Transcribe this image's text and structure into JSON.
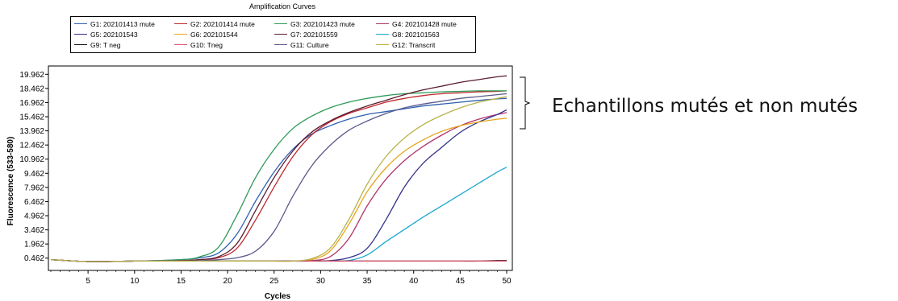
{
  "chart_data": {
    "type": "line",
    "title": "Amplification Curves",
    "xlabel": "Cycles",
    "ylabel": "Fluorescence (533-580)",
    "xlim": [
      1,
      50
    ],
    "ylim": [
      -0.5,
      20.5
    ],
    "x_ticks": [
      "5",
      "10",
      "15",
      "20",
      "25",
      "30",
      "35",
      "40",
      "45",
      "50"
    ],
    "y_ticks": [
      "0.462",
      "1.962",
      "3.462",
      "4.962",
      "6.462",
      "7.962",
      "9.462",
      "10.962",
      "12.462",
      "13.962",
      "15.462",
      "16.962",
      "18.462",
      "19.962"
    ],
    "grid": false,
    "legend_position": "top",
    "x": [
      1,
      5,
      10,
      15,
      17,
      19,
      21,
      23,
      25,
      27,
      29,
      31,
      33,
      35,
      37,
      39,
      41,
      43,
      45,
      47,
      49,
      50
    ],
    "series": [
      {
        "name": "G1: 202101413 mute",
        "color": "#2f5fb0",
        "values": [
          0.3,
          0.1,
          0.15,
          0.3,
          0.5,
          1.0,
          3.0,
          6.5,
          9.6,
          12.0,
          13.6,
          14.5,
          15.2,
          15.7,
          16.0,
          16.3,
          16.6,
          16.8,
          17.0,
          17.2,
          17.35,
          17.4
        ]
      },
      {
        "name": "G2: 202101414 mute",
        "color": "#c0282d",
        "values": [
          0.3,
          0.1,
          0.15,
          0.2,
          0.3,
          0.5,
          1.5,
          4.5,
          8.0,
          11.2,
          13.5,
          14.9,
          15.8,
          16.4,
          17.0,
          17.4,
          17.7,
          17.9,
          18.0,
          18.1,
          18.15,
          18.2
        ]
      },
      {
        "name": "G3: 202101423 mute",
        "color": "#2e9a57",
        "values": [
          0.3,
          0.1,
          0.15,
          0.3,
          0.6,
          1.6,
          5.0,
          9.0,
          12.0,
          14.2,
          15.5,
          16.4,
          17.0,
          17.4,
          17.7,
          17.9,
          18.0,
          18.1,
          18.15,
          18.2,
          18.2,
          18.2
        ]
      },
      {
        "name": "G4: 202101428 mute",
        "color": "#b0356c",
        "values": [
          0.3,
          0.1,
          0.15,
          0.15,
          0.15,
          0.15,
          0.15,
          0.15,
          0.15,
          0.15,
          0.2,
          0.6,
          2.5,
          6.0,
          8.8,
          10.8,
          12.3,
          13.5,
          14.5,
          15.2,
          15.7,
          15.9
        ]
      },
      {
        "name": "G5: 202101543",
        "color": "#31318a",
        "values": [
          0.3,
          0.1,
          0.15,
          0.15,
          0.15,
          0.15,
          0.15,
          0.15,
          0.15,
          0.15,
          0.15,
          0.2,
          0.5,
          1.5,
          4.5,
          8.0,
          10.5,
          12.2,
          13.8,
          14.9,
          15.7,
          16.2
        ]
      },
      {
        "name": "G6: 202101544",
        "color": "#e6a51c",
        "values": [
          0.3,
          0.1,
          0.15,
          0.15,
          0.15,
          0.15,
          0.15,
          0.15,
          0.15,
          0.15,
          0.3,
          1.2,
          4.0,
          7.5,
          10.0,
          11.8,
          13.0,
          13.9,
          14.5,
          14.9,
          15.2,
          15.3
        ]
      },
      {
        "name": "G7: 202101559",
        "color": "#5b1c31",
        "values": [
          0.3,
          0.1,
          0.15,
          0.2,
          0.3,
          0.6,
          2.0,
          5.5,
          9.0,
          11.8,
          13.8,
          15.0,
          15.9,
          16.6,
          17.2,
          17.8,
          18.3,
          18.7,
          19.1,
          19.4,
          19.7,
          19.8
        ]
      },
      {
        "name": "G8: 202101563",
        "color": "#19a7cf",
        "values": [
          0.3,
          0.1,
          0.15,
          0.15,
          0.15,
          0.15,
          0.15,
          0.15,
          0.15,
          0.15,
          0.15,
          0.15,
          0.2,
          0.8,
          2.2,
          3.5,
          4.8,
          6.0,
          7.2,
          8.4,
          9.6,
          10.1
        ]
      },
      {
        "name": "G9: T neg",
        "color": "#111111",
        "values": [
          0.3,
          0.1,
          0.15,
          0.15,
          0.15,
          0.15,
          0.15,
          0.15,
          0.15,
          0.15,
          0.15,
          0.15,
          0.15,
          0.15,
          0.15,
          0.15,
          0.15,
          0.15,
          0.15,
          0.15,
          0.2,
          0.2
        ]
      },
      {
        "name": "G10: Tneg",
        "color": "#e0506e",
        "values": [
          0.3,
          0.1,
          0.15,
          0.15,
          0.15,
          0.15,
          0.15,
          0.15,
          0.15,
          0.15,
          0.15,
          0.15,
          0.15,
          0.15,
          0.15,
          0.15,
          0.15,
          0.15,
          0.15,
          0.15,
          0.15,
          0.15
        ]
      },
      {
        "name": "G11: Culture",
        "color": "#5a5a8c",
        "values": [
          0.3,
          0.1,
          0.15,
          0.15,
          0.2,
          0.3,
          0.5,
          1.2,
          3.3,
          7.0,
          10.2,
          12.4,
          14.0,
          15.0,
          15.8,
          16.4,
          16.8,
          17.1,
          17.4,
          17.6,
          17.8,
          17.9
        ]
      },
      {
        "name": "G12: Transcrit",
        "color": "#b9b24a",
        "values": [
          0.3,
          0.1,
          0.15,
          0.15,
          0.15,
          0.15,
          0.15,
          0.15,
          0.15,
          0.15,
          0.4,
          1.5,
          4.5,
          8.3,
          11.2,
          13.2,
          14.6,
          15.6,
          16.4,
          17.0,
          17.4,
          17.6
        ]
      }
    ]
  },
  "annotation": {
    "text": "Echantillons mutés et non mutés"
  }
}
